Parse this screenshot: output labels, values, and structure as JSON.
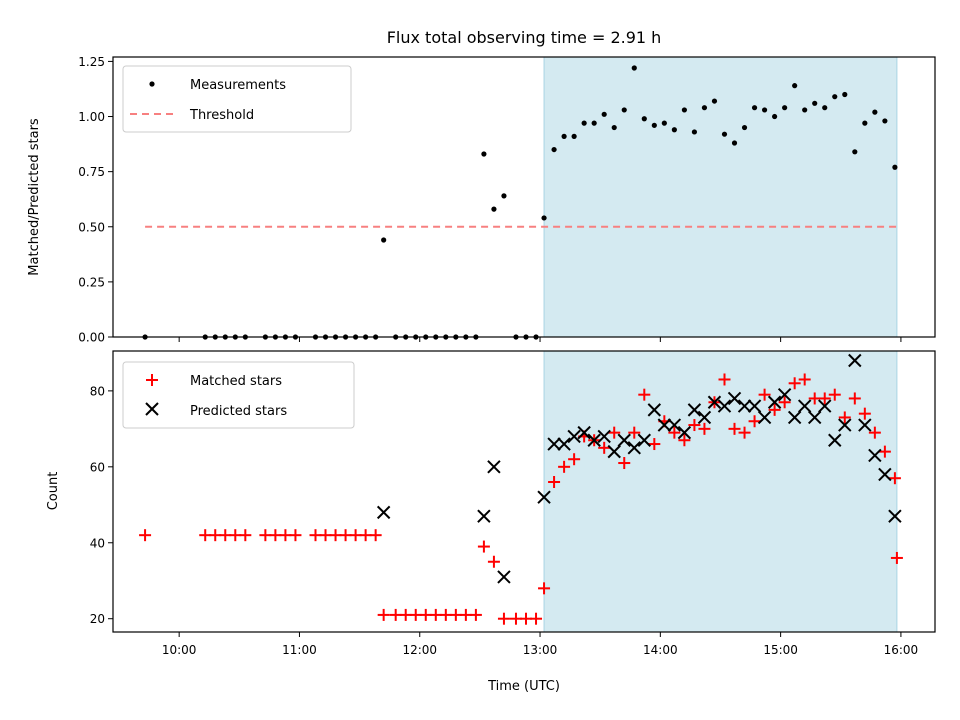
{
  "title": "Flux total observing time = 2.91 h",
  "xlabel": "Time (UTC)",
  "x_ticks": [
    "10:00",
    "11:00",
    "12:00",
    "13:00",
    "14:00",
    "15:00",
    "16:00"
  ],
  "chart_data": [
    {
      "type": "scatter",
      "ylabel": "Matched/Predicted stars",
      "xlim": [
        "09:27",
        "16:17"
      ],
      "ylim": [
        0,
        1.27
      ],
      "y_ticks": [
        "0.00",
        "0.25",
        "0.50",
        "0.75",
        "1.00",
        "1.25"
      ],
      "legend_position": "top-left",
      "shaded_interval": {
        "start": "13:02",
        "end": "15:58",
        "color": "#d4eaf1"
      },
      "threshold": {
        "name": "Threshold",
        "value": 0.5,
        "from": "09:43",
        "to": "15:58",
        "color": "#f78080",
        "style": "dashed"
      },
      "series": [
        {
          "name": "Measurements",
          "color": "#000000",
          "marker": "dot",
          "points": [
            [
              "09:43",
              0.0
            ],
            [
              "10:13",
              0.0
            ],
            [
              "10:18",
              0.0
            ],
            [
              "10:23",
              0.0
            ],
            [
              "10:28",
              0.0
            ],
            [
              "10:33",
              0.0
            ],
            [
              "10:43",
              0.0
            ],
            [
              "10:48",
              0.0
            ],
            [
              "10:53",
              0.0
            ],
            [
              "10:58",
              0.0
            ],
            [
              "11:08",
              0.0
            ],
            [
              "11:13",
              0.0
            ],
            [
              "11:18",
              0.0
            ],
            [
              "11:23",
              0.0
            ],
            [
              "11:28",
              0.0
            ],
            [
              "11:33",
              0.0
            ],
            [
              "11:38",
              0.0
            ],
            [
              "11:42",
              0.44
            ],
            [
              "11:48",
              0.0
            ],
            [
              "11:53",
              0.0
            ],
            [
              "11:58",
              0.0
            ],
            [
              "12:03",
              0.0
            ],
            [
              "12:08",
              0.0
            ],
            [
              "12:13",
              0.0
            ],
            [
              "12:18",
              0.0
            ],
            [
              "12:23",
              0.0
            ],
            [
              "12:28",
              0.0
            ],
            [
              "12:32",
              0.83
            ],
            [
              "12:37",
              0.58
            ],
            [
              "12:42",
              0.64
            ],
            [
              "12:48",
              0.0
            ],
            [
              "12:53",
              0.0
            ],
            [
              "12:58",
              0.0
            ],
            [
              "13:02",
              0.54
            ],
            [
              "13:07",
              0.85
            ],
            [
              "13:12",
              0.91
            ],
            [
              "13:17",
              0.91
            ],
            [
              "13:22",
              0.97
            ],
            [
              "13:27",
              0.97
            ],
            [
              "13:32",
              1.01
            ],
            [
              "13:37",
              0.95
            ],
            [
              "13:42",
              1.03
            ],
            [
              "13:47",
              1.22
            ],
            [
              "13:52",
              0.99
            ],
            [
              "13:57",
              0.96
            ],
            [
              "14:02",
              0.97
            ],
            [
              "14:07",
              0.94
            ],
            [
              "14:12",
              1.03
            ],
            [
              "14:17",
              0.93
            ],
            [
              "14:22",
              1.04
            ],
            [
              "14:27",
              1.07
            ],
            [
              "14:32",
              0.92
            ],
            [
              "14:37",
              0.88
            ],
            [
              "14:42",
              0.95
            ],
            [
              "14:47",
              1.04
            ],
            [
              "14:52",
              1.03
            ],
            [
              "14:57",
              1.0
            ],
            [
              "15:02",
              1.04
            ],
            [
              "15:07",
              1.14
            ],
            [
              "15:12",
              1.03
            ],
            [
              "15:17",
              1.06
            ],
            [
              "15:22",
              1.04
            ],
            [
              "15:27",
              1.09
            ],
            [
              "15:32",
              1.1
            ],
            [
              "15:37",
              0.84
            ],
            [
              "15:42",
              0.97
            ],
            [
              "15:47",
              1.02
            ],
            [
              "15:52",
              0.98
            ],
            [
              "15:57",
              0.77
            ]
          ]
        }
      ]
    },
    {
      "type": "scatter",
      "ylabel": "Count",
      "xlim": [
        "09:27",
        "16:17"
      ],
      "ylim": [
        16.5,
        90.5
      ],
      "y_ticks": [
        "20",
        "40",
        "60",
        "80"
      ],
      "legend_position": "top-left",
      "shaded_interval": {
        "start": "13:02",
        "end": "15:58",
        "color": "#d4eaf1"
      },
      "series": [
        {
          "name": "Matched stars",
          "color": "#ff0000",
          "marker": "plus",
          "points": [
            [
              "09:43",
              42
            ],
            [
              "10:13",
              42
            ],
            [
              "10:18",
              42
            ],
            [
              "10:23",
              42
            ],
            [
              "10:28",
              42
            ],
            [
              "10:33",
              42
            ],
            [
              "10:43",
              42
            ],
            [
              "10:48",
              42
            ],
            [
              "10:53",
              42
            ],
            [
              "10:58",
              42
            ],
            [
              "11:08",
              42
            ],
            [
              "11:13",
              42
            ],
            [
              "11:18",
              42
            ],
            [
              "11:23",
              42
            ],
            [
              "11:28",
              42
            ],
            [
              "11:33",
              42
            ],
            [
              "11:38",
              42
            ],
            [
              "11:42",
              21
            ],
            [
              "11:48",
              21
            ],
            [
              "11:53",
              21
            ],
            [
              "11:58",
              21
            ],
            [
              "12:03",
              21
            ],
            [
              "12:08",
              21
            ],
            [
              "12:13",
              21
            ],
            [
              "12:18",
              21
            ],
            [
              "12:23",
              21
            ],
            [
              "12:28",
              21
            ],
            [
              "12:32",
              39
            ],
            [
              "12:37",
              35
            ],
            [
              "12:42",
              20
            ],
            [
              "12:48",
              20
            ],
            [
              "12:53",
              20
            ],
            [
              "12:58",
              20
            ],
            [
              "13:02",
              28
            ],
            [
              "13:07",
              56
            ],
            [
              "13:12",
              60
            ],
            [
              "13:17",
              62
            ],
            [
              "13:22",
              68
            ],
            [
              "13:27",
              67
            ],
            [
              "13:32",
              65
            ],
            [
              "13:37",
              69
            ],
            [
              "13:42",
              61
            ],
            [
              "13:47",
              69
            ],
            [
              "13:52",
              79
            ],
            [
              "13:57",
              66
            ],
            [
              "14:02",
              72
            ],
            [
              "14:07",
              69
            ],
            [
              "14:12",
              67
            ],
            [
              "14:17",
              71
            ],
            [
              "14:22",
              70
            ],
            [
              "14:27",
              77
            ],
            [
              "14:32",
              83
            ],
            [
              "14:37",
              70
            ],
            [
              "14:42",
              69
            ],
            [
              "14:47",
              72
            ],
            [
              "14:52",
              79
            ],
            [
              "14:57",
              75
            ],
            [
              "15:02",
              77
            ],
            [
              "15:07",
              82
            ],
            [
              "15:12",
              83
            ],
            [
              "15:17",
              78
            ],
            [
              "15:22",
              78
            ],
            [
              "15:27",
              79
            ],
            [
              "15:32",
              73
            ],
            [
              "15:37",
              78
            ],
            [
              "15:42",
              74
            ],
            [
              "15:47",
              69
            ],
            [
              "15:52",
              64
            ],
            [
              "15:57",
              57
            ],
            [
              "15:58",
              36
            ]
          ]
        },
        {
          "name": "Predicted stars",
          "color": "#000000",
          "marker": "x",
          "points": [
            [
              "11:42",
              48
            ],
            [
              "12:32",
              47
            ],
            [
              "12:37",
              60
            ],
            [
              "12:42",
              31
            ],
            [
              "13:02",
              52
            ],
            [
              "13:07",
              66
            ],
            [
              "13:12",
              66
            ],
            [
              "13:17",
              68
            ],
            [
              "13:22",
              69
            ],
            [
              "13:27",
              67
            ],
            [
              "13:32",
              68
            ],
            [
              "13:37",
              64
            ],
            [
              "13:42",
              67
            ],
            [
              "13:47",
              65
            ],
            [
              "13:52",
              67
            ],
            [
              "13:57",
              75
            ],
            [
              "14:02",
              71
            ],
            [
              "14:07",
              71
            ],
            [
              "14:12",
              69
            ],
            [
              "14:17",
              75
            ],
            [
              "14:22",
              73
            ],
            [
              "14:27",
              77
            ],
            [
              "14:32",
              76
            ],
            [
              "14:37",
              78
            ],
            [
              "14:42",
              76
            ],
            [
              "14:47",
              76
            ],
            [
              "14:52",
              73
            ],
            [
              "14:57",
              77
            ],
            [
              "15:02",
              79
            ],
            [
              "15:07",
              73
            ],
            [
              "15:12",
              76
            ],
            [
              "15:17",
              73
            ],
            [
              "15:22",
              76
            ],
            [
              "15:27",
              67
            ],
            [
              "15:32",
              71
            ],
            [
              "15:37",
              88
            ],
            [
              "15:42",
              71
            ],
            [
              "15:47",
              63
            ],
            [
              "15:52",
              58
            ],
            [
              "15:57",
              47
            ]
          ]
        }
      ]
    }
  ]
}
